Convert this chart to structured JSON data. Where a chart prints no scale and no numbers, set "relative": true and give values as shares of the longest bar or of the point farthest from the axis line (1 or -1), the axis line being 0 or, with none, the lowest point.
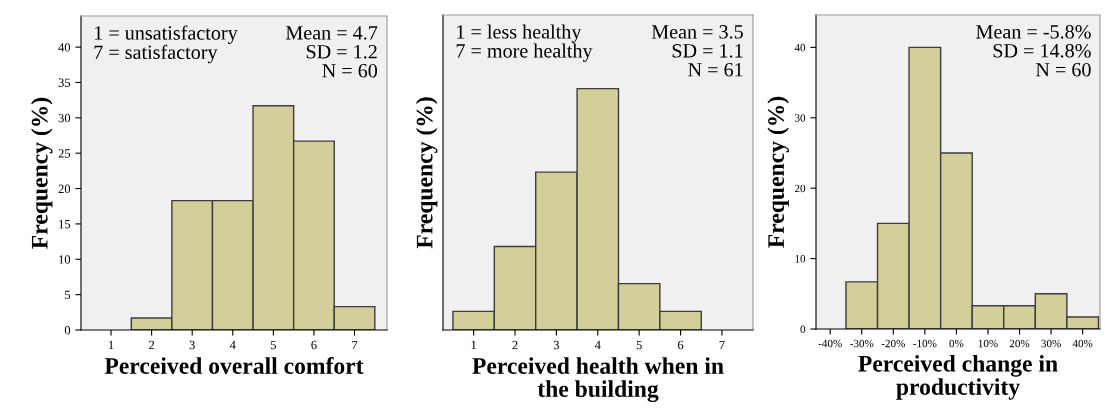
{
  "chart_data": [
    {
      "type": "histogram",
      "xlabel": "Perceived overall comfort",
      "ylabel": "Frequency (%)",
      "bins": [
        0.5,
        1.5,
        2.5,
        3.5,
        4.5,
        5.5,
        6.5,
        7.5
      ],
      "values": [
        0,
        1.7,
        18.3,
        18.3,
        31.7,
        26.7,
        3.3
      ],
      "color": "#d3cf9a",
      "xlim": [
        0.26,
        7.8
      ],
      "xticks": [
        1,
        2,
        3,
        4,
        5,
        6,
        7
      ],
      "ylim": [
        0,
        44.4
      ],
      "yticks": [
        0,
        5,
        10,
        15,
        20,
        25,
        30,
        35,
        40
      ],
      "annotations": [
        "1 = unsatisfactory\n7 = satisfactory",
        "Mean = 4.7\nSD = 1.2\nN = 60"
      ],
      "grid": false,
      "legend": false
    },
    {
      "type": "bar",
      "xlabel": "Perceived health when in\nthe building",
      "ylabel": "Frequency (%)",
      "categories": [
        "1",
        "2",
        "3",
        "4",
        "5",
        "6",
        "7"
      ],
      "values": [
        0.077,
        0.346,
        0.654,
        1,
        0.192,
        0.077,
        0
      ],
      "color": "#d3cf9a",
      "relative": true,
      "annotations": [
        "1 = less healthy\n7 = more healthy",
        "Mean = 3.5\nSD = 1.1\nN = 61"
      ],
      "grid": false,
      "legend": false
    },
    {
      "type": "histogram",
      "xlabel": "Perceived change in\nproductivity",
      "ylabel": "Frequency (%)",
      "bins": [
        -45,
        -35,
        -25,
        -15,
        -5,
        5,
        15,
        25,
        35,
        45
      ],
      "values": [
        0,
        6.7,
        15,
        40,
        25,
        3.3,
        3.3,
        5,
        1.7
      ],
      "color": "#d3cf9a",
      "xlim": [
        -44.5,
        45.5
      ],
      "xticks": [
        {
          "value": -40,
          "label": "-40%"
        },
        {
          "value": -30,
          "label": "-30%"
        },
        {
          "value": -20,
          "label": "-20%"
        },
        {
          "value": -10,
          "label": "-10%"
        },
        {
          "value": 0,
          "label": "0%"
        },
        {
          "value": 10,
          "label": "10%"
        },
        {
          "value": 20,
          "label": "20%"
        },
        {
          "value": 30,
          "label": "30%"
        },
        {
          "value": 40,
          "label": "40%"
        }
      ],
      "ylim": [
        0,
        44.6
      ],
      "yticks": [
        0,
        10,
        20,
        30,
        40
      ],
      "annotations": [
        "Mean = -5.8%\nSD = 14.8%\nN = 60"
      ],
      "grid": false,
      "legend": false
    }
  ]
}
